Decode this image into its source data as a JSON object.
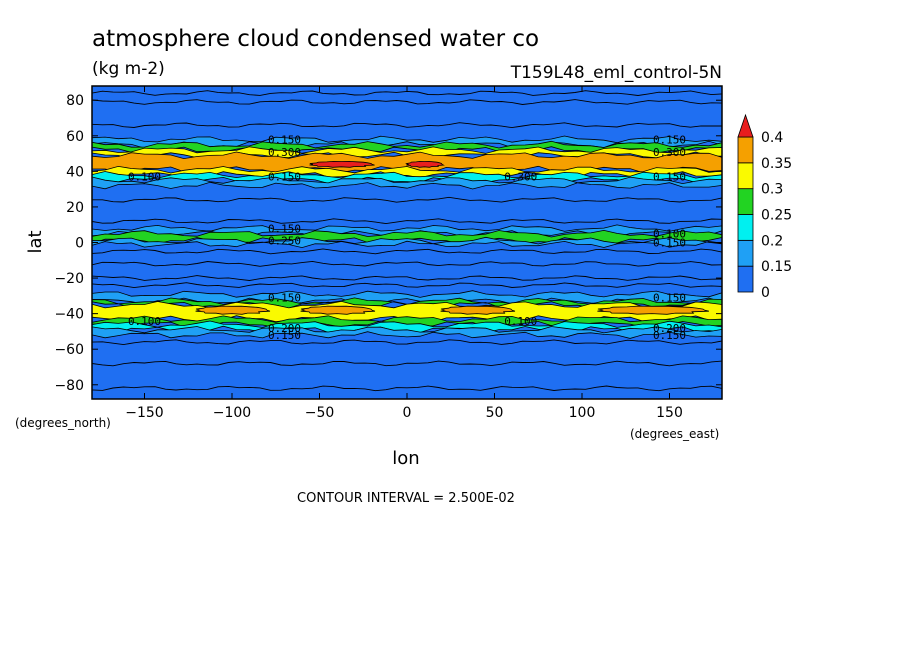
{
  "chart_data": {
    "type": "heatmap",
    "title": "atmosphere cloud condensed water co",
    "units": "(kg m-2)",
    "run_name": "T159L48_eml_control-5N",
    "xlabel": "lon",
    "ylabel": "lat",
    "x_units": "(degrees_east)",
    "y_units": "(degrees_north)",
    "xlim": [
      -180,
      180
    ],
    "ylim": [
      -88,
      88
    ],
    "x_ticks": [
      -150,
      -100,
      -50,
      0,
      50,
      100,
      150
    ],
    "y_ticks": [
      80,
      60,
      40,
      20,
      0,
      -20,
      -40,
      -60,
      -80
    ],
    "contour_interval_text": "CONTOUR INTERVAL = 2.500E-02",
    "colorbar": {
      "levels": [
        0,
        0.15,
        0.2,
        0.25,
        0.3,
        0.35,
        0.4
      ],
      "tick_labels": [
        "0",
        "0.15",
        "0.2",
        "0.25",
        "0.3",
        "0.35",
        "0.4"
      ],
      "colors": [
        "#1f6ff2",
        "#1fa0f5",
        "#00f0f0",
        "#22d322",
        "#fafa00",
        "#f5a000",
        "#e81e1e"
      ],
      "extend": "max"
    },
    "bands": [
      {
        "lat_min": 55,
        "lat_max": 58,
        "level": 0.15
      },
      {
        "lat_min": 52,
        "lat_max": 55,
        "level": 0.25
      },
      {
        "lat_min": 49,
        "lat_max": 52,
        "level": 0.3
      },
      {
        "lat_min": 41,
        "lat_max": 49,
        "level": 0.35
      },
      {
        "lat_min": 38,
        "lat_max": 41,
        "level": 0.3
      },
      {
        "lat_min": 35,
        "lat_max": 38,
        "level": 0.2
      },
      {
        "lat_min": 32,
        "lat_max": 35,
        "level": 0.15
      },
      {
        "lat_min": 5,
        "lat_max": 8,
        "level": 0.15
      },
      {
        "lat_min": 1,
        "lat_max": 5,
        "level": 0.25
      },
      {
        "lat_min": -1,
        "lat_max": 1,
        "level": 0.15
      },
      {
        "lat_min": -33,
        "lat_max": -29,
        "level": 0.15
      },
      {
        "lat_min": -35,
        "lat_max": -33,
        "level": 0.25
      },
      {
        "lat_min": -43,
        "lat_max": -35,
        "level": 0.3
      },
      {
        "lat_min": -46,
        "lat_max": -43,
        "level": 0.25
      },
      {
        "lat_min": -49,
        "lat_max": -46,
        "level": 0.2
      },
      {
        "lat_min": -52,
        "lat_max": -49,
        "level": 0.15
      }
    ],
    "max_patches": [
      {
        "lon_min": -55,
        "lon_max": -20,
        "lat": 44,
        "level": 0.4
      },
      {
        "lon_min": 0,
        "lon_max": 20,
        "lat": 44,
        "level": 0.4
      }
    ],
    "orange_patches_south": [
      {
        "lon_min": -120,
        "lon_max": -80,
        "lat": -38,
        "level": 0.35
      },
      {
        "lon_min": -60,
        "lon_max": -20,
        "lat": -38,
        "level": 0.35
      },
      {
        "lon_min": 20,
        "lon_max": 60,
        "lat": -38,
        "level": 0.35
      },
      {
        "lon_min": 110,
        "lon_max": 170,
        "lat": -38,
        "level": 0.35
      }
    ],
    "thin_contours_lat": [
      84,
      79,
      66,
      24,
      12,
      -5,
      -12,
      -20,
      -24,
      -56,
      -68,
      -82
    ],
    "contour_labels": [
      {
        "lon": -70,
        "lat": 58,
        "text": "0.150"
      },
      {
        "lon": -70,
        "lat": 51,
        "text": "0.300"
      },
      {
        "lon": -150,
        "lat": 37,
        "text": "0.100"
      },
      {
        "lon": -70,
        "lat": 37,
        "text": "0.150"
      },
      {
        "lon": 65,
        "lat": 37,
        "text": "0.300"
      },
      {
        "lon": 150,
        "lat": 58,
        "text": "0.150"
      },
      {
        "lon": 150,
        "lat": 51,
        "text": "0.300"
      },
      {
        "lon": 150,
        "lat": 37,
        "text": "0.150"
      },
      {
        "lon": -70,
        "lat": 8,
        "text": "0.150"
      },
      {
        "lon": -70,
        "lat": 1,
        "text": "0.250"
      },
      {
        "lon": 150,
        "lat": 5,
        "text": "0.100"
      },
      {
        "lon": 150,
        "lat": 0,
        "text": "0.150"
      },
      {
        "lon": -70,
        "lat": -31,
        "text": "0.150"
      },
      {
        "lon": -150,
        "lat": -44,
        "text": "0.100"
      },
      {
        "lon": -70,
        "lat": -48,
        "text": "0.200"
      },
      {
        "lon": -70,
        "lat": -52,
        "text": "0.150"
      },
      {
        "lon": 65,
        "lat": -44,
        "text": "0.100"
      },
      {
        "lon": 150,
        "lat": -31,
        "text": "0.150"
      },
      {
        "lon": 150,
        "lat": -48,
        "text": "0.200"
      },
      {
        "lon": 150,
        "lat": -52,
        "text": "0.150"
      }
    ]
  }
}
